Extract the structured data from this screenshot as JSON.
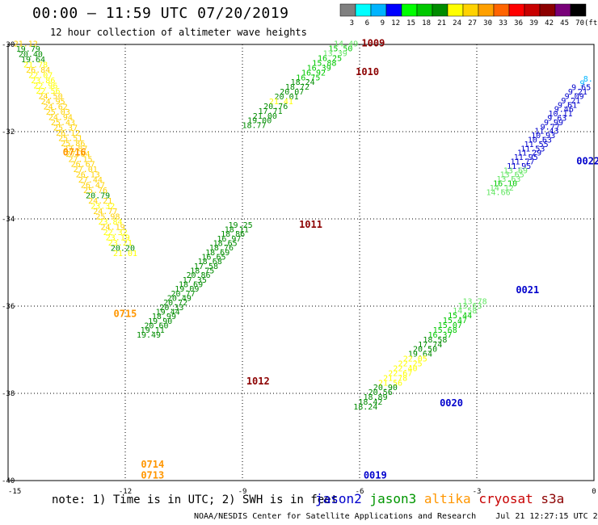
{
  "header": {
    "title": "00:00 – 11:59 UTC 07/20/2019",
    "subtitle": "12 hour collection of altimeter wave heights"
  },
  "colorbar": {
    "labels": [
      "3",
      "6",
      "9",
      "12",
      "15",
      "18",
      "21",
      "24",
      "27",
      "30",
      "33",
      "36",
      "39",
      "42",
      "45",
      "70",
      "(ft)"
    ],
    "colors": [
      "#808080",
      "#00ffff",
      "#00b4ff",
      "#0000ff",
      "#00ff00",
      "#00c800",
      "#008c00",
      "#ffff00",
      "#ffd200",
      "#ffa000",
      "#ff6400",
      "#ff0000",
      "#c80000",
      "#8c0000",
      "#780078",
      "#000000"
    ]
  },
  "note": "note: 1) Time is in UTC; 2) SWH is in feet",
  "satellites": [
    {
      "name": "jason2",
      "color": "#0000cc"
    },
    {
      "name": "jason3",
      "color": "#009600"
    },
    {
      "name": "altika",
      "color": "#ff9600"
    },
    {
      "name": "cryosat",
      "color": "#c80000"
    },
    {
      "name": "s3a",
      "color": "#8c0000"
    }
  ],
  "footer": "NOAA/NESDIS Center for Satellite Applications and Research    Jul 21 12:27:15 UTC 2019",
  "chart_data": {
    "type": "scatter",
    "xlim": [
      -15,
      0
    ],
    "ylim": [
      -40,
      -30
    ],
    "x_ticks": [
      "-15",
      "-12",
      "-9",
      "-6",
      "-3",
      "0"
    ],
    "y_ticks": [
      "-30",
      "-32",
      "-34",
      "-36",
      "-38",
      "-40"
    ],
    "grid": true,
    "time_labels": [
      {
        "text": "1009",
        "x": -5.95,
        "y": -30.05,
        "color": "#8c0000"
      },
      {
        "text": "1010",
        "x": -6.1,
        "y": -30.7,
        "color": "#8c0000"
      },
      {
        "text": "0716",
        "x": -13.6,
        "y": -32.55,
        "color": "#ff9600"
      },
      {
        "text": "0022",
        "x": -0.45,
        "y": -32.75,
        "color": "#0000cc"
      },
      {
        "text": "1011",
        "x": -7.55,
        "y": -34.2,
        "color": "#8c0000"
      },
      {
        "text": "0021",
        "x": -2.0,
        "y": -35.7,
        "color": "#0000cc"
      },
      {
        "text": "0715",
        "x": -12.3,
        "y": -36.25,
        "color": "#ff9600"
      },
      {
        "text": "1012",
        "x": -8.9,
        "y": -37.8,
        "color": "#8c0000"
      },
      {
        "text": "0020",
        "x": -3.95,
        "y": -38.3,
        "color": "#0000cc"
      },
      {
        "text": "0714",
        "x": -11.6,
        "y": -39.7,
        "color": "#ff9600"
      },
      {
        "text": "0713",
        "x": -11.6,
        "y": -39.95,
        "color": "#ff9600"
      },
      {
        "text": "0019",
        "x": -5.9,
        "y": -39.95,
        "color": "#0000cc"
      }
    ],
    "series": [
      {
        "name": "altika",
        "x0": -14.55,
        "x1": -12.0,
        "values": [
          {
            "v": "21.12",
            "c": "#ffd200"
          },
          {
            "v": "19.79",
            "c": "#008c00"
          },
          {
            "v": "20.40",
            "c": "#008c00"
          },
          {
            "v": "19.64",
            "c": "#008c00"
          },
          {
            "v": "21.78",
            "c": "#ffff00"
          },
          {
            "v": "26.84",
            "c": "#ffd200"
          },
          {
            "v": "22.07",
            "c": "#ffff00"
          },
          {
            "v": "23.86",
            "c": "#ffff00"
          },
          {
            "v": "22.96",
            "c": "#ffff00"
          },
          {
            "v": "22.56",
            "c": "#ffff00"
          },
          {
            "v": "24.50",
            "c": "#ffd200"
          },
          {
            "v": "24.95",
            "c": "#ffd200"
          },
          {
            "v": "24.62",
            "c": "#ffd200"
          },
          {
            "v": "25.03",
            "c": "#ffd200"
          },
          {
            "v": "24.94",
            "c": "#ffd200"
          },
          {
            "v": "25.43",
            "c": "#ffd200"
          },
          {
            "v": "25.37",
            "c": "#ffd200"
          },
          {
            "v": "26.12",
            "c": "#ffd200"
          },
          {
            "v": "25.51",
            "c": "#ffd200"
          },
          {
            "v": "25.86",
            "c": "#ffd200"
          },
          {
            "v": "27.87",
            "c": "#ffd200"
          },
          {
            "v": "27.04",
            "c": "#ffd200"
          },
          {
            "v": "27.15",
            "c": "#ffd200"
          },
          {
            "v": "26.67",
            "c": "#ffd200"
          },
          {
            "v": "27.01",
            "c": "#ffd200"
          },
          {
            "v": "26.13",
            "c": "#ffd200"
          },
          {
            "v": "27.44",
            "c": "#ffd200"
          },
          {
            "v": "26.47",
            "c": "#ffd200"
          },
          {
            "v": "25.76",
            "c": "#ffd200"
          },
          {
            "v": "20.79",
            "c": "#008c00"
          },
          {
            "v": "24.21",
            "c": "#ffd200"
          },
          {
            "v": "23.32",
            "c": "#ffff00"
          },
          {
            "v": "24.77",
            "c": "#ffd200"
          },
          {
            "v": "25.98",
            "c": "#ffd200"
          },
          {
            "v": "23.84",
            "c": "#ffff00"
          },
          {
            "v": "24.19",
            "c": "#ffd200"
          },
          {
            "v": "22.32",
            "c": "#ffff00"
          },
          {
            "v": "23.19",
            "c": "#ffff00"
          },
          {
            "v": "23.21",
            "c": "#ffff00"
          },
          {
            "v": "20.20",
            "c": "#008c00"
          },
          {
            "v": "21.01",
            "c": "#ffff00"
          }
        ]
      },
      {
        "name": "jason3",
        "x0": -9.05,
        "x1": -11.4,
        "values": [
          {
            "v": "19.25",
            "c": "#008c00"
          },
          {
            "v": "18.11",
            "c": "#008c00"
          },
          {
            "v": "18.86",
            "c": "#008c00"
          },
          {
            "v": "16.97",
            "c": "#008c00"
          },
          {
            "v": "18.65",
            "c": "#008c00"
          },
          {
            "v": "18.76",
            "c": "#008c00"
          },
          {
            "v": "18.69",
            "c": "#008c00"
          },
          {
            "v": "16.65",
            "c": "#008c00"
          },
          {
            "v": "18.68",
            "c": "#008c00"
          },
          {
            "v": "17.58",
            "c": "#008c00"
          },
          {
            "v": "18.75",
            "c": "#008c00"
          },
          {
            "v": "20.86",
            "c": "#008c00"
          },
          {
            "v": "17.35",
            "c": "#008c00"
          },
          {
            "v": "18.69",
            "c": "#008c00"
          },
          {
            "v": "19.09",
            "c": "#008c00"
          },
          {
            "v": "20.77",
            "c": "#008c00"
          },
          {
            "v": "20.49",
            "c": "#008c00"
          },
          {
            "v": "20.72",
            "c": "#008c00"
          },
          {
            "v": "20.33",
            "c": "#008c00"
          },
          {
            "v": "19.44",
            "c": "#008c00"
          },
          {
            "v": "18.99",
            "c": "#008c00"
          },
          {
            "v": "19.90",
            "c": "#008c00"
          },
          {
            "v": "20.60",
            "c": "#008c00"
          },
          {
            "v": "19.11",
            "c": "#008c00"
          },
          {
            "v": "19.49",
            "c": "#008c00"
          }
        ],
        "y_start": -34.2
      },
      {
        "name": "jason3-north",
        "x0": -6.35,
        "x1": -8.7,
        "values": [
          {
            "v": "14.49",
            "c": "#64e664"
          },
          {
            "v": "15.50",
            "c": "#00c800"
          },
          {
            "v": "13.39",
            "c": "#64e664"
          },
          {
            "v": "16.25",
            "c": "#00c800"
          },
          {
            "v": "15.88",
            "c": "#00c800"
          },
          {
            "v": "16.39",
            "c": "#00c800"
          },
          {
            "v": "16.92",
            "c": "#00c800"
          },
          {
            "v": "16.75",
            "c": "#00c800"
          },
          {
            "v": "18.24",
            "c": "#008c00"
          },
          {
            "v": "18.72",
            "c": "#008c00"
          },
          {
            "v": "20.07",
            "c": "#008c00"
          },
          {
            "v": "20.01",
            "c": "#008c00"
          },
          {
            "v": "21.41",
            "c": "#ffff00"
          },
          {
            "v": "20.76",
            "c": "#008c00"
          },
          {
            "v": "17.71",
            "c": "#008c00"
          },
          {
            "v": "21.00",
            "c": "#008c00"
          },
          {
            "v": "19.00",
            "c": "#008c00"
          },
          {
            "v": "18.77",
            "c": "#008c00"
          }
        ],
        "y_start": -30.05
      },
      {
        "name": "jason2",
        "x0": -0.15,
        "x1": -2.45,
        "values": [
          {
            "v": "8.",
            "c": "#00b4ff"
          },
          {
            "v": "9.",
            "c": "#00b4ff"
          },
          {
            "v": "9.65",
            "c": "#0000cc"
          },
          {
            "v": "9.21",
            "c": "#0000cc"
          },
          {
            "v": "9.09",
            "c": "#0000cc"
          },
          {
            "v": "9.21",
            "c": "#0000cc"
          },
          {
            "v": "9.61",
            "c": "#0000cc"
          },
          {
            "v": "9.46",
            "c": "#0000cc"
          },
          {
            "v": "10.11",
            "c": "#0000cc"
          },
          {
            "v": "9.63",
            "c": "#0000cc"
          },
          {
            "v": "9.99",
            "c": "#0000cc"
          },
          {
            "v": "9.77",
            "c": "#0000cc"
          },
          {
            "v": "11.43",
            "c": "#0000cc"
          },
          {
            "v": "10.93",
            "c": "#0000cc"
          },
          {
            "v": "10.63",
            "c": "#0000cc"
          },
          {
            "v": "11.55",
            "c": "#0000cc"
          },
          {
            "v": "11.53",
            "c": "#0000cc"
          },
          {
            "v": "11.29",
            "c": "#0000cc"
          },
          {
            "v": "11.95",
            "c": "#0000cc"
          },
          {
            "v": "11.77",
            "c": "#0000cc"
          },
          {
            "v": "11.95",
            "c": "#0000cc"
          },
          {
            "v": "13.69",
            "c": "#64e664"
          },
          {
            "v": "13.65",
            "c": "#64e664"
          },
          {
            "v": "13.63",
            "c": "#64e664"
          },
          {
            "v": "16.10",
            "c": "#00c800"
          },
          {
            "v": "14.12",
            "c": "#64e664"
          },
          {
            "v": "14.66",
            "c": "#64e664"
          }
        ],
        "y_start": -30.85
      },
      {
        "name": "jason2-south",
        "x0": -3.05,
        "x1": -5.85,
        "values": [
          {
            "v": "13.78",
            "c": "#64e664"
          },
          {
            "v": "13.63",
            "c": "#64e664"
          },
          {
            "v": "14.58",
            "c": "#64e664"
          },
          {
            "v": "15.44",
            "c": "#00c800"
          },
          {
            "v": "15.47",
            "c": "#00c800"
          },
          {
            "v": "15.07",
            "c": "#00c800"
          },
          {
            "v": "15.68",
            "c": "#00c800"
          },
          {
            "v": "16.37",
            "c": "#00c800"
          },
          {
            "v": "18.58",
            "c": "#008c00"
          },
          {
            "v": "17.74",
            "c": "#008c00"
          },
          {
            "v": "20.50",
            "c": "#008c00"
          },
          {
            "v": "19.64",
            "c": "#008c00"
          },
          {
            "v": "22.05",
            "c": "#ffff00"
          },
          {
            "v": "22.25",
            "c": "#ffff00"
          },
          {
            "v": "22.40",
            "c": "#ffff00"
          },
          {
            "v": "22.67",
            "c": "#ffff00"
          },
          {
            "v": "21.78",
            "c": "#ffff00"
          },
          {
            "v": "21.56",
            "c": "#ffff00"
          },
          {
            "v": "20.90",
            "c": "#008c00"
          },
          {
            "v": "20.56",
            "c": "#008c00"
          },
          {
            "v": "18.89",
            "c": "#008c00"
          },
          {
            "v": "18.42",
            "c": "#008c00"
          },
          {
            "v": "18.24",
            "c": "#008c00"
          }
        ],
        "y_start": -35.95
      }
    ]
  }
}
